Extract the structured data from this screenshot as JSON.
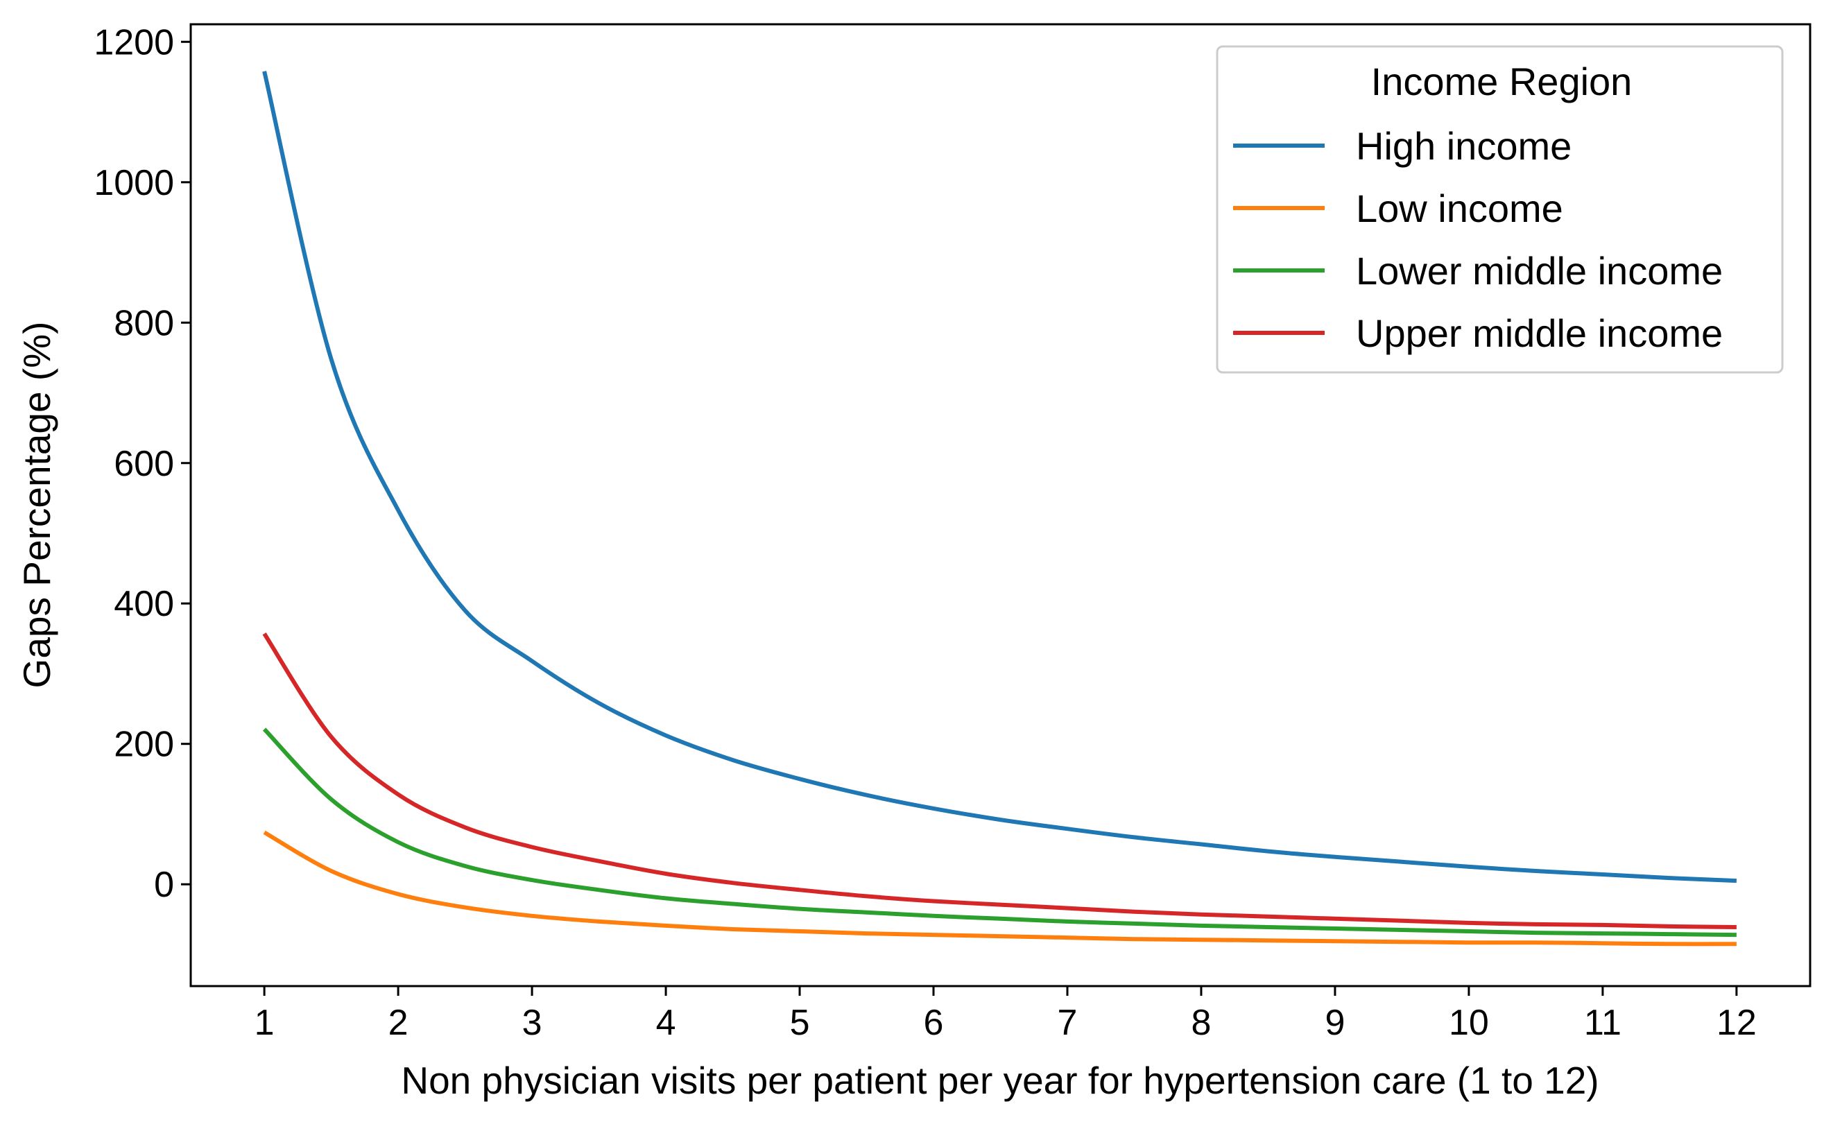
{
  "chart_data": {
    "type": "line",
    "title": "",
    "xlabel": "Non physician visits per patient per year for hypertension care (1 to 12)",
    "ylabel": "Gaps Percentage (%)",
    "xlim": [
      0.45,
      12.55
    ],
    "ylim": [
      -145,
      1225
    ],
    "x_ticks": [
      1,
      2,
      3,
      4,
      5,
      6,
      7,
      8,
      9,
      10,
      11,
      12
    ],
    "y_ticks": [
      0,
      200,
      400,
      600,
      800,
      1000,
      1200
    ],
    "x_tick_labels": [
      "1",
      "2",
      "3",
      "4",
      "5",
      "6",
      "7",
      "8",
      "9",
      "10",
      "11",
      "12"
    ],
    "y_tick_labels": [
      "0",
      "200",
      "400",
      "600",
      "800",
      "1000",
      "1200"
    ],
    "grid": false,
    "legend": {
      "title": "Income Region",
      "placement": "top-right"
    },
    "x": [
      1,
      1.5,
      2,
      2.5,
      3,
      3.5,
      4,
      4.5,
      5,
      5.5,
      6,
      6.5,
      7,
      7.5,
      8,
      8.5,
      9,
      9.5,
      10,
      10.5,
      11,
      11.5,
      12
    ],
    "series": [
      {
        "name": "High income",
        "color": "#1f77b4",
        "values": [
          1158,
          748,
          533,
          390,
          318,
          258,
          212,
          177,
          150,
          127,
          108,
          92,
          79,
          67,
          57,
          47,
          39,
          32,
          25,
          19,
          14,
          9,
          5
        ]
      },
      {
        "name": "Low income",
        "color": "#ff7f0e",
        "values": [
          74,
          19,
          -14,
          -33,
          -45,
          -53,
          -59,
          -64,
          -67,
          -70,
          -72,
          -74,
          -76,
          -78,
          -79,
          -80,
          -81,
          -82,
          -83,
          -83,
          -84,
          -85,
          -85
        ]
      },
      {
        "name": "Lower middle income",
        "color": "#2ca02c",
        "values": [
          221,
          121,
          60,
          26,
          6,
          -8,
          -20,
          -28,
          -35,
          -40,
          -45,
          -49,
          -53,
          -56,
          -59,
          -61,
          -63,
          -65,
          -67,
          -69,
          -70,
          -71,
          -72
        ]
      },
      {
        "name": "Upper middle income",
        "color": "#d62728",
        "values": [
          357,
          210,
          128,
          81,
          53,
          33,
          15,
          2,
          -8,
          -17,
          -24,
          -29,
          -34,
          -39,
          -43,
          -46,
          -49,
          -52,
          -55,
          -57,
          -58,
          -60,
          -61
        ]
      }
    ]
  }
}
